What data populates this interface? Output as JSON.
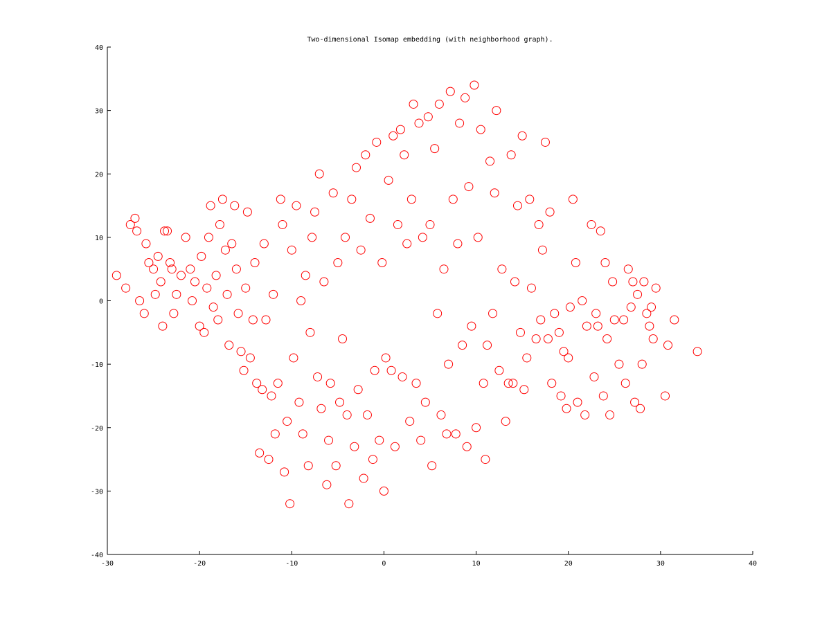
{
  "chart_data": {
    "type": "scatter",
    "title": "Two-dimensional Isomap embedding (with neighborhood graph).",
    "xlabel": "",
    "ylabel": "",
    "xlim": [
      -30,
      40
    ],
    "ylim": [
      -40,
      40
    ],
    "xticks": [
      -30,
      -20,
      -10,
      0,
      10,
      20,
      30,
      40
    ],
    "yticks": [
      -40,
      -30,
      -20,
      -10,
      0,
      10,
      20,
      30,
      40
    ],
    "grid": false,
    "marker": "circle-open",
    "color": "#ff0000",
    "series": [
      {
        "points": [
          [
            -29,
            4
          ],
          [
            -28,
            2
          ],
          [
            -27.5,
            12
          ],
          [
            -27,
            13
          ],
          [
            -26.8,
            11
          ],
          [
            -26.5,
            0
          ],
          [
            -26,
            -2
          ],
          [
            -25.8,
            9
          ],
          [
            -25.5,
            6
          ],
          [
            -25,
            5
          ],
          [
            -24.8,
            1
          ],
          [
            -24.5,
            7
          ],
          [
            -24.2,
            3
          ],
          [
            -24,
            -4
          ],
          [
            -23.8,
            11
          ],
          [
            -23.5,
            11
          ],
          [
            -23.2,
            6
          ],
          [
            -23,
            5
          ],
          [
            -22.5,
            1
          ],
          [
            -22.8,
            -2
          ],
          [
            -22,
            4
          ],
          [
            -21.5,
            10
          ],
          [
            -21,
            5
          ],
          [
            -20.8,
            0
          ],
          [
            -20.5,
            3
          ],
          [
            -20,
            -4
          ],
          [
            -19.8,
            7
          ],
          [
            -19.5,
            -5
          ],
          [
            -19.2,
            2
          ],
          [
            -19,
            10
          ],
          [
            -18.8,
            15
          ],
          [
            -18.5,
            -1
          ],
          [
            -18.2,
            4
          ],
          [
            -18,
            -3
          ],
          [
            -17.8,
            12
          ],
          [
            -17.5,
            16
          ],
          [
            -17.2,
            8
          ],
          [
            -17,
            1
          ],
          [
            -16.8,
            -7
          ],
          [
            -16.5,
            9
          ],
          [
            -16.2,
            15
          ],
          [
            -16,
            5
          ],
          [
            -15.8,
            -2
          ],
          [
            -15.5,
            -8
          ],
          [
            -15.2,
            -11
          ],
          [
            -15,
            2
          ],
          [
            -14.8,
            14
          ],
          [
            -14.5,
            -9
          ],
          [
            -14.2,
            -3
          ],
          [
            -14,
            6
          ],
          [
            -13.8,
            -13
          ],
          [
            -13.5,
            -24
          ],
          [
            -13.2,
            -14
          ],
          [
            -13,
            9
          ],
          [
            -12.8,
            -3
          ],
          [
            -12.5,
            -25
          ],
          [
            -12.2,
            -15
          ],
          [
            -12,
            1
          ],
          [
            -11.8,
            -21
          ],
          [
            -11.5,
            -13
          ],
          [
            -11.2,
            16
          ],
          [
            -11,
            12
          ],
          [
            -10.8,
            -27
          ],
          [
            -10.5,
            -19
          ],
          [
            -10.2,
            -32
          ],
          [
            -10,
            8
          ],
          [
            -9.8,
            -9
          ],
          [
            -9.5,
            15
          ],
          [
            -9.2,
            -16
          ],
          [
            -9,
            0
          ],
          [
            -8.8,
            -21
          ],
          [
            -8.5,
            4
          ],
          [
            -8.2,
            -26
          ],
          [
            -8,
            -5
          ],
          [
            -7.8,
            10
          ],
          [
            -7.5,
            14
          ],
          [
            -7.2,
            -12
          ],
          [
            -7,
            20
          ],
          [
            -6.8,
            -17
          ],
          [
            -6.5,
            3
          ],
          [
            -6.2,
            -29
          ],
          [
            -6,
            -22
          ],
          [
            -5.8,
            -13
          ],
          [
            -5.5,
            17
          ],
          [
            -5.2,
            -26
          ],
          [
            -5,
            6
          ],
          [
            -4.8,
            -16
          ],
          [
            -4.5,
            -6
          ],
          [
            -4.2,
            10
          ],
          [
            -4,
            -18
          ],
          [
            -3.8,
            -32
          ],
          [
            -3.5,
            16
          ],
          [
            -3.2,
            -23
          ],
          [
            -3,
            21
          ],
          [
            -2.8,
            -14
          ],
          [
            -2.5,
            8
          ],
          [
            -2.2,
            -28
          ],
          [
            -2,
            23
          ],
          [
            -1.8,
            -18
          ],
          [
            -1.5,
            13
          ],
          [
            -1.2,
            -25
          ],
          [
            -1,
            -11
          ],
          [
            -0.8,
            25
          ],
          [
            -0.5,
            -22
          ],
          [
            -0.2,
            6
          ],
          [
            0,
            -30
          ],
          [
            0.2,
            -9
          ],
          [
            0.5,
            19
          ],
          [
            0.8,
            -11
          ],
          [
            1,
            26
          ],
          [
            1.2,
            -23
          ],
          [
            1.5,
            12
          ],
          [
            1.8,
            27
          ],
          [
            2,
            -12
          ],
          [
            2.2,
            23
          ],
          [
            2.5,
            9
          ],
          [
            2.8,
            -19
          ],
          [
            3,
            16
          ],
          [
            3.2,
            31
          ],
          [
            3.5,
            -13
          ],
          [
            3.8,
            28
          ],
          [
            4,
            -22
          ],
          [
            4.2,
            10
          ],
          [
            4.5,
            -16
          ],
          [
            4.8,
            29
          ],
          [
            5,
            12
          ],
          [
            5.2,
            -26
          ],
          [
            5.5,
            24
          ],
          [
            5.8,
            -2
          ],
          [
            6,
            31
          ],
          [
            6.2,
            -18
          ],
          [
            6.5,
            5
          ],
          [
            6.8,
            -21
          ],
          [
            7,
            -10
          ],
          [
            7.2,
            33
          ],
          [
            7.5,
            16
          ],
          [
            7.8,
            -21
          ],
          [
            8,
            9
          ],
          [
            8.2,
            28
          ],
          [
            8.5,
            -7
          ],
          [
            8.8,
            32
          ],
          [
            9,
            -23
          ],
          [
            9.2,
            18
          ],
          [
            9.5,
            -4
          ],
          [
            9.8,
            34
          ],
          [
            10,
            -20
          ],
          [
            10.2,
            10
          ],
          [
            10.5,
            27
          ],
          [
            10.8,
            -13
          ],
          [
            11,
            -25
          ],
          [
            11.2,
            -7
          ],
          [
            11.5,
            22
          ],
          [
            11.8,
            -2
          ],
          [
            12,
            17
          ],
          [
            12.2,
            30
          ],
          [
            12.5,
            -11
          ],
          [
            12.8,
            5
          ],
          [
            13.2,
            -19
          ],
          [
            13.5,
            -13
          ],
          [
            13.8,
            23
          ],
          [
            14,
            -13
          ],
          [
            14.2,
            3
          ],
          [
            14.5,
            15
          ],
          [
            14.8,
            -5
          ],
          [
            15,
            26
          ],
          [
            15.2,
            -14
          ],
          [
            15.5,
            -9
          ],
          [
            15.8,
            16
          ],
          [
            16,
            2
          ],
          [
            16.5,
            -6
          ],
          [
            16.8,
            12
          ],
          [
            17,
            -3
          ],
          [
            17.2,
            8
          ],
          [
            17.5,
            25
          ],
          [
            17.8,
            -6
          ],
          [
            18,
            14
          ],
          [
            18.2,
            -13
          ],
          [
            18.5,
            -2
          ],
          [
            19,
            -5
          ],
          [
            19.2,
            -15
          ],
          [
            19.5,
            -8
          ],
          [
            19.8,
            -17
          ],
          [
            20,
            -9
          ],
          [
            20.2,
            -1
          ],
          [
            20.5,
            16
          ],
          [
            20.8,
            6
          ],
          [
            21,
            -16
          ],
          [
            21.5,
            0
          ],
          [
            21.8,
            -18
          ],
          [
            22,
            -4
          ],
          [
            22.5,
            12
          ],
          [
            22.8,
            -12
          ],
          [
            23,
            -2
          ],
          [
            23.2,
            -4
          ],
          [
            23.5,
            11
          ],
          [
            23.8,
            -15
          ],
          [
            24,
            6
          ],
          [
            24.2,
            -6
          ],
          [
            24.5,
            -18
          ],
          [
            24.8,
            3
          ],
          [
            25,
            -3
          ],
          [
            25.5,
            -10
          ],
          [
            26,
            -3
          ],
          [
            26.2,
            -13
          ],
          [
            26.5,
            5
          ],
          [
            26.8,
            -1
          ],
          [
            27,
            3
          ],
          [
            27.2,
            -16
          ],
          [
            27.5,
            1
          ],
          [
            27.8,
            -17
          ],
          [
            28,
            -10
          ],
          [
            28.2,
            3
          ],
          [
            28.5,
            -2
          ],
          [
            28.8,
            -4
          ],
          [
            29,
            -1
          ],
          [
            29.2,
            -6
          ],
          [
            29.5,
            2
          ],
          [
            30.5,
            -15
          ],
          [
            30.8,
            -7
          ],
          [
            31.5,
            -3
          ],
          [
            34,
            -8
          ]
        ]
      }
    ]
  }
}
